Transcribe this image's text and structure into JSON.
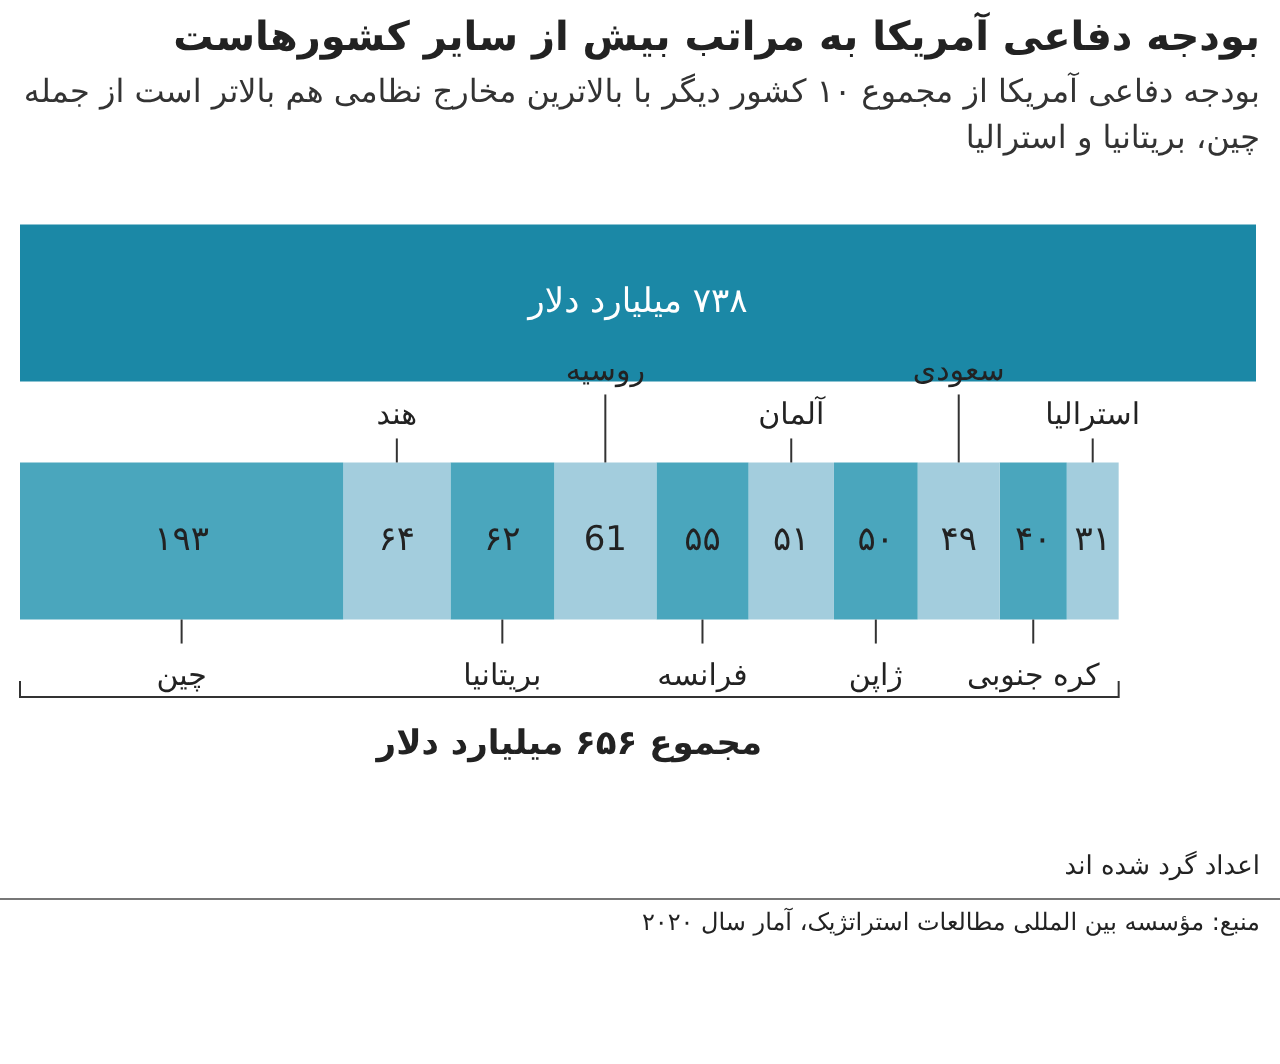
{
  "chart_data": {
    "type": "bar",
    "orientation": "horizontal",
    "stacked": true,
    "legend": false,
    "title": "بودجه دفاعی آمریکا به مراتب بیش از سایر کشورهاست",
    "subtitle": "بودجه دفاعی آمریکا از مجموع ۱۰ کشور دیگر با بالاترین مخارج نظامی هم بالاتر است از جمله چین، بریتانیا و استرالیا",
    "categories": [
      null,
      null
    ],
    "series": [
      {
        "color": "#1b88a6",
        "values": [
          738,
          null
        ],
        "value_labels": [
          "۷۳۸ میلیارد دلار",
          null
        ]
      },
      {
        "name": "چین",
        "color": "#4aa6bd",
        "values": [
          null,
          193
        ],
        "value_labels": [
          null,
          "۱۹۳"
        ]
      },
      {
        "name": "هند",
        "color": "#a3cddd",
        "values": [
          null,
          64
        ],
        "value_labels": [
          null,
          "۶۴"
        ]
      },
      {
        "name": "بریتانیا",
        "color": "#4aa6bd",
        "values": [
          null,
          62
        ],
        "value_labels": [
          null,
          "۶۲"
        ]
      },
      {
        "name": "روسیه",
        "color": "#a3cddd",
        "values": [
          null,
          61
        ],
        "value_labels": [
          null,
          "61"
        ]
      },
      {
        "name": "فرانسه",
        "color": "#4aa6bd",
        "values": [
          null,
          55
        ],
        "value_labels": [
          null,
          "۵۵"
        ]
      },
      {
        "name": "آلمان",
        "color": "#a3cddd",
        "values": [
          null,
          51
        ],
        "value_labels": [
          null,
          "۵۱"
        ]
      },
      {
        "name": "ژاپن",
        "color": "#4aa6bd",
        "values": [
          null,
          50
        ],
        "value_labels": [
          null,
          "۵۰"
        ]
      },
      {
        "name": "سعودی",
        "color": "#a3cddd",
        "values": [
          null,
          49
        ],
        "value_labels": [
          null,
          "۴۹"
        ]
      },
      {
        "name": "کره جنوبی",
        "color": "#4aa6bd",
        "values": [
          null,
          40
        ],
        "value_labels": [
          null,
          "۴۰"
        ]
      },
      {
        "name": "استرالیا",
        "color": "#a3cddd",
        "values": [
          null,
          31
        ],
        "value_labels": [
          null,
          "۳۱"
        ]
      }
    ],
    "totals": [
      null,
      "مجموع ۶۵۶ میلیارد دلار"
    ],
    "annotations": [
      "اعداد گرد شده اند",
      "منبع: مؤسسه بین المللی مطالعات استراتژیک، آمار سال ۲۰۲۰"
    ]
  }
}
